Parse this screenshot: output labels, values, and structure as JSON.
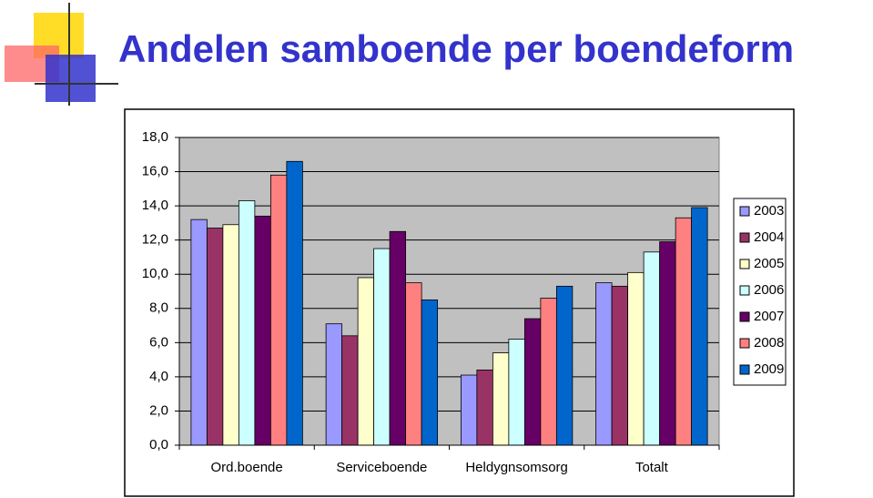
{
  "chart_data": {
    "type": "bar",
    "title": "Andelen samboende per boendeform",
    "categories": [
      "Ord.boende",
      "Serviceboende",
      "Heldygnsomsorg",
      "Totalt"
    ],
    "series": [
      {
        "name": "2003",
        "color": "#9999ff",
        "values": [
          13.2,
          7.1,
          4.1,
          9.5
        ]
      },
      {
        "name": "2004",
        "color": "#993366",
        "values": [
          12.7,
          6.4,
          4.4,
          9.3
        ]
      },
      {
        "name": "2005",
        "color": "#ffffcc",
        "values": [
          12.9,
          9.8,
          5.4,
          10.1
        ]
      },
      {
        "name": "2006",
        "color": "#ccffff",
        "values": [
          14.3,
          11.5,
          6.2,
          11.3
        ]
      },
      {
        "name": "2007",
        "color": "#660066",
        "values": [
          13.4,
          12.5,
          7.4,
          11.9
        ]
      },
      {
        "name": "2008",
        "color": "#ff8080",
        "values": [
          15.8,
          9.5,
          8.6,
          13.3
        ]
      },
      {
        "name": "2009",
        "color": "#0066cc",
        "values": [
          16.6,
          8.5,
          9.3,
          13.9
        ]
      }
    ],
    "ylim": [
      0,
      18
    ],
    "yticks": [
      {
        "value": 0,
        "label": "0,0"
      },
      {
        "value": 2,
        "label": "2,0"
      },
      {
        "value": 4,
        "label": "4,0"
      },
      {
        "value": 6,
        "label": "6,0"
      },
      {
        "value": 8,
        "label": "8,0"
      },
      {
        "value": 10,
        "label": "10,0"
      },
      {
        "value": 12,
        "label": "12,0"
      },
      {
        "value": 14,
        "label": "14,0"
      },
      {
        "value": 16,
        "label": "16,0"
      },
      {
        "value": 18,
        "label": "18,0"
      }
    ],
    "grid": true,
    "legend": "right"
  }
}
